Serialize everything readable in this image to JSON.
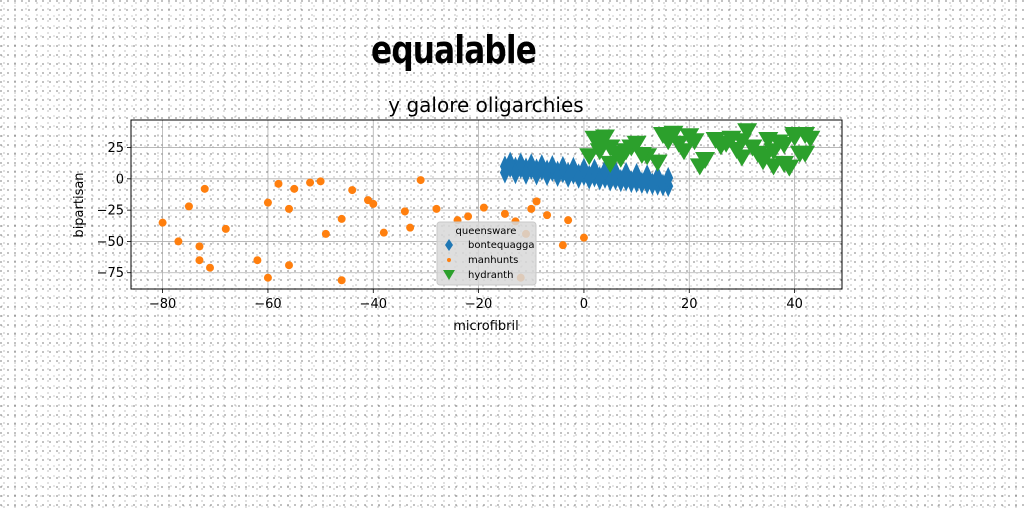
{
  "figure_title": "equalable",
  "chart_data": {
    "type": "scatter",
    "title": "y galore oligarchies",
    "xlabel": "microfibril",
    "ylabel": "bipartisan",
    "xlim": [
      -86,
      49
    ],
    "ylim": [
      -88,
      47
    ],
    "xticks": [
      -80,
      -60,
      -40,
      -20,
      0,
      20,
      40
    ],
    "yticks": [
      25,
      0,
      -25,
      -50,
      -75
    ],
    "grid": true,
    "legend": {
      "title": "queensware",
      "placement": "lower-center"
    },
    "series": [
      {
        "name": "bontequagga",
        "marker": "thin-diamond",
        "color": "#1f77b4",
        "x": [
          -15,
          -14,
          -13,
          -12,
          -11,
          -10,
          -9,
          -8,
          -7,
          -6,
          -5,
          -4,
          -3,
          -2,
          -1,
          0,
          1,
          2,
          3,
          4,
          5,
          6,
          7,
          8,
          9,
          10,
          11,
          12,
          13,
          14,
          15,
          16,
          -15,
          -13,
          -11,
          -9,
          -7,
          -5,
          -3,
          -1,
          1,
          3,
          5,
          7,
          9,
          11,
          13,
          15,
          -14,
          -12,
          -10,
          -8,
          -6,
          -4,
          -2,
          0,
          2,
          4,
          6,
          8,
          10,
          12,
          14,
          16
        ],
        "y": [
          10,
          9.5,
          9,
          8.7,
          8.4,
          8,
          7.6,
          7.2,
          6.8,
          6.3,
          5.8,
          5.2,
          4.7,
          4.1,
          3.6,
          3,
          2.5,
          1.9,
          1.4,
          0.8,
          0.2,
          -0.3,
          -0.9,
          -1.4,
          -2,
          -2.5,
          -3.1,
          -3.6,
          -4.2,
          -4.7,
          -5.2,
          -5.8,
          5,
          4.5,
          4,
          3.5,
          3,
          2.3,
          1.6,
          0.9,
          0.2,
          -0.5,
          -1.2,
          -1.9,
          -2.6,
          -3.2,
          -3.9,
          -4.6,
          13,
          12.3,
          11.7,
          11,
          10.3,
          9.6,
          8.9,
          8.2,
          7.5,
          6.6,
          5.7,
          4.8,
          3.9,
          2.9,
          1.9,
          0.8
        ]
      },
      {
        "name": "manhunts",
        "marker": "circle",
        "color": "#ff7f0e",
        "x": [
          -80,
          -77,
          -75,
          -73,
          -73,
          -72,
          -71,
          -68,
          -62,
          -60,
          -60,
          -58,
          -56,
          -56,
          -55,
          -52,
          -50,
          -49,
          -46,
          -46,
          -44,
          -41,
          -40,
          -38,
          -34,
          -33,
          -31,
          -28,
          -24,
          -22,
          -19,
          -15,
          -13,
          -12,
          -11,
          -10,
          -9,
          -7,
          -4,
          -3,
          0
        ],
        "y": [
          -35,
          -50,
          -22,
          -54,
          -65,
          -8,
          -71,
          -40,
          -65,
          -79,
          -19,
          -4,
          -24,
          -69,
          -8,
          -3,
          -2,
          -44,
          -32,
          -81,
          -9,
          -17,
          -20,
          -43,
          -26,
          -39,
          -1,
          -24,
          -33,
          -30,
          -23,
          -28,
          -34,
          -79,
          -44,
          -24,
          -18,
          -29,
          -53,
          -33,
          -47
        ]
      },
      {
        "name": "hydranth",
        "marker": "triangle-down",
        "color": "#2ca02c",
        "x": [
          2,
          3,
          4,
          5,
          6,
          7,
          8,
          10,
          12,
          15,
          16,
          17,
          18,
          19,
          20,
          21,
          23,
          25,
          27,
          28,
          29,
          30,
          31,
          32,
          33,
          34,
          35,
          36,
          37,
          38,
          39,
          40,
          41,
          42,
          43,
          1,
          3,
          5,
          9,
          11,
          14,
          22,
          26,
          30,
          34,
          36,
          38,
          40,
          42
        ],
        "y": [
          32,
          30,
          33,
          25,
          20,
          16,
          22,
          28,
          18,
          35,
          30,
          36,
          28,
          22,
          34,
          30,
          15,
          31,
          28,
          32,
          23,
          30,
          38,
          25,
          20,
          18,
          31,
          22,
          29,
          12,
          9,
          33,
          20,
          35,
          32,
          18,
          22,
          12,
          25,
          19,
          13,
          10,
          26,
          17,
          14,
          10,
          27,
          35,
          20
        ]
      }
    ]
  }
}
